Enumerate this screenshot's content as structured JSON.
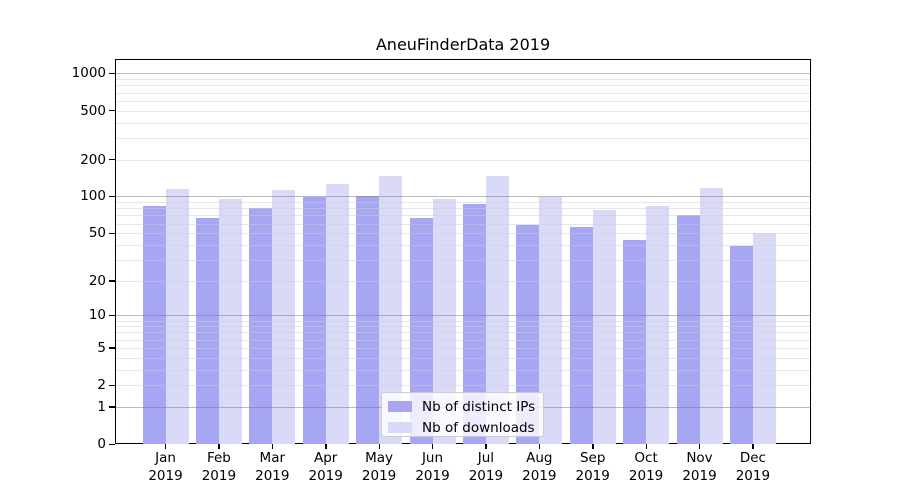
{
  "chart_data": {
    "type": "bar",
    "title": "AneuFinderData 2019",
    "categories": [
      "Jan 2019",
      "Feb 2019",
      "Mar 2019",
      "Apr 2019",
      "May 2019",
      "Jun 2019",
      "Jul 2019",
      "Aug 2019",
      "Sep 2019",
      "Oct 2019",
      "Nov 2019",
      "Dec 2019"
    ],
    "x_tick_months": [
      "Jan",
      "Feb",
      "Mar",
      "Apr",
      "May",
      "Jun",
      "Jul",
      "Aug",
      "Sep",
      "Oct",
      "Nov",
      "Dec"
    ],
    "x_tick_year": "2019",
    "series": [
      {
        "name": "Nb of distinct IPs",
        "color": "#a6a6f2",
        "values": [
          83,
          66,
          81,
          99,
          101,
          66,
          86,
          58,
          56,
          44,
          71,
          39
        ]
      },
      {
        "name": "Nb of downloads",
        "color": "#d9d9f8",
        "values": [
          116,
          96,
          113,
          126,
          147,
          96,
          147,
          99,
          77,
          84,
          117,
          50
        ]
      }
    ],
    "yscale": "log1p",
    "ylim": [
      0,
      1286
    ],
    "yticks": [
      1000,
      500,
      200,
      100,
      50,
      20,
      10,
      5,
      2,
      1,
      0
    ],
    "grid": {
      "on": true,
      "major_at": [
        1,
        10,
        100,
        1000
      ],
      "minor_color": "#e6e6e6",
      "major_color": "#bdbdbd"
    },
    "legend_position": "bottom-center",
    "axis_color": "#000000"
  }
}
